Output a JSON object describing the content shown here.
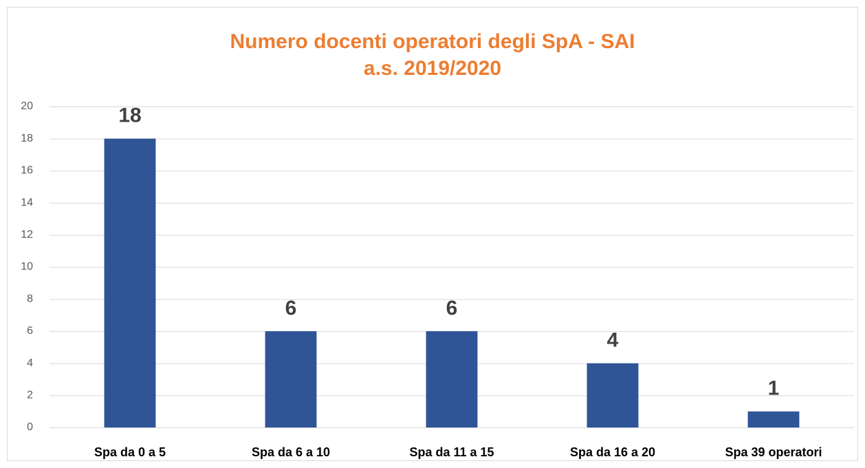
{
  "chart_data": {
    "type": "bar",
    "title": "Numero docenti operatori degli SpA - SAI",
    "subtitle": "a.s. 2019/2020",
    "categories": [
      "Spa da 0 a 5",
      "Spa da 6 a 10",
      "Spa da 11 a 15",
      "Spa da 16 a 20",
      "Spa 39 operatori"
    ],
    "values": [
      18,
      6,
      6,
      4,
      1
    ],
    "color": "#2f5597",
    "ylim": [
      0,
      20
    ],
    "yticks": [
      0,
      2,
      4,
      6,
      8,
      10,
      12,
      14,
      16,
      18,
      20
    ],
    "grid": true,
    "data_labels": true
  }
}
